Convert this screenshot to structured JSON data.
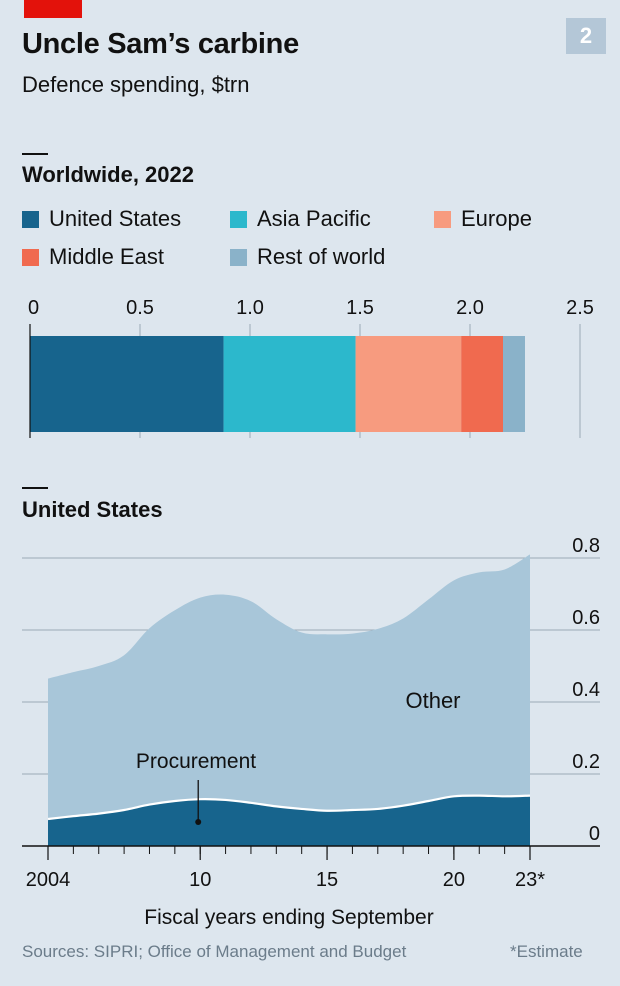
{
  "header": {
    "title": "Uncle Sam’s carbine",
    "subtitle": "Defence spending, $trn",
    "badge": "2"
  },
  "footer": {
    "source": "Sources: SIPRI; Office of Management and Budget",
    "note": "*Estimate"
  },
  "chart_data": [
    {
      "type": "bar",
      "stacked": true,
      "orientation": "horizontal",
      "title": "Worldwide, 2022",
      "category": "2022",
      "xlim": [
        0,
        2.5
      ],
      "ticks": [
        "0",
        "0.5",
        "1.0",
        "1.5",
        "2.0",
        "2.5"
      ],
      "tick_values": [
        0,
        0.5,
        1.0,
        1.5,
        2.0,
        2.5
      ],
      "legend_placement": "top",
      "series": [
        {
          "name": "United States",
          "value": 0.88,
          "color": "#17648d"
        },
        {
          "name": "Asia Pacific",
          "value": 0.6,
          "color": "#2cb8cc"
        },
        {
          "name": "Europe",
          "value": 0.48,
          "color": "#f79b7f"
        },
        {
          "name": "Middle East",
          "value": 0.19,
          "color": "#f06a4f"
        },
        {
          "name": "Rest of world",
          "value": 0.1,
          "color": "#8ab2c9"
        }
      ]
    },
    {
      "type": "area",
      "stacked": true,
      "title": "United States",
      "xlabel": "Fiscal years ending September",
      "ylim": [
        0,
        0.8
      ],
      "y_ticks": [
        "0",
        "0.2",
        "0.4",
        "0.6",
        "0.8"
      ],
      "y_tick_values": [
        0,
        0.2,
        0.4,
        0.6,
        0.8
      ],
      "x_tick_labels": [
        {
          "year": 2004,
          "label": "2004"
        },
        {
          "year": 2010,
          "label": "10"
        },
        {
          "year": 2015,
          "label": "15"
        },
        {
          "year": 2020,
          "label": "20"
        },
        {
          "year": 2023,
          "label": "23*"
        }
      ],
      "x": [
        2004,
        2005,
        2006,
        2007,
        2008,
        2009,
        2010,
        2011,
        2012,
        2013,
        2014,
        2015,
        2016,
        2017,
        2018,
        2019,
        2020,
        2021,
        2022,
        2023
      ],
      "series": [
        {
          "name": "Procurement",
          "color": "#17648d",
          "values": [
            0.075,
            0.083,
            0.09,
            0.1,
            0.115,
            0.125,
            0.13,
            0.128,
            0.12,
            0.11,
            0.103,
            0.098,
            0.1,
            0.103,
            0.112,
            0.125,
            0.138,
            0.14,
            0.138,
            0.14
          ]
        },
        {
          "name": "Other",
          "color": "#a8c6d9",
          "values": [
            0.39,
            0.4,
            0.41,
            0.43,
            0.49,
            0.53,
            0.56,
            0.57,
            0.56,
            0.52,
            0.49,
            0.49,
            0.49,
            0.5,
            0.52,
            0.56,
            0.6,
            0.62,
            0.63,
            0.67
          ]
        }
      ],
      "annotations": [
        {
          "text": "Procurement",
          "series": "Procurement"
        },
        {
          "text": "Other",
          "series": "Other"
        }
      ]
    }
  ]
}
